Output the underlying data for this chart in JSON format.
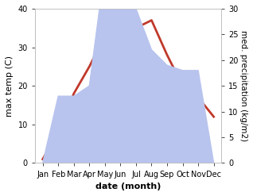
{
  "months": [
    "Jan",
    "Feb",
    "Mar",
    "Apr",
    "May",
    "Jun",
    "Jul",
    "Aug",
    "Sep",
    "Oct",
    "Nov",
    "Dec"
  ],
  "temp": [
    1,
    8,
    18,
    25,
    33,
    34,
    35,
    37,
    28,
    20,
    17,
    12
  ],
  "precip": [
    0,
    13,
    13,
    15,
    38,
    40,
    30,
    22,
    19,
    18,
    18,
    0
  ],
  "temp_color": "#c0392b",
  "precip_color": "#b8c4ee",
  "ylabel_left": "max temp (C)",
  "ylabel_right": "med. precipitation (kg/m2)",
  "xlabel": "date (month)",
  "ylim_left": [
    0,
    40
  ],
  "ylim_right": [
    0,
    30
  ],
  "yticks_left": [
    0,
    10,
    20,
    30,
    40
  ],
  "yticks_right": [
    0,
    5,
    10,
    15,
    20,
    25,
    30
  ],
  "label_fontsize": 8,
  "tick_fontsize": 7,
  "line_width": 2.0,
  "background_color": "#ffffff"
}
